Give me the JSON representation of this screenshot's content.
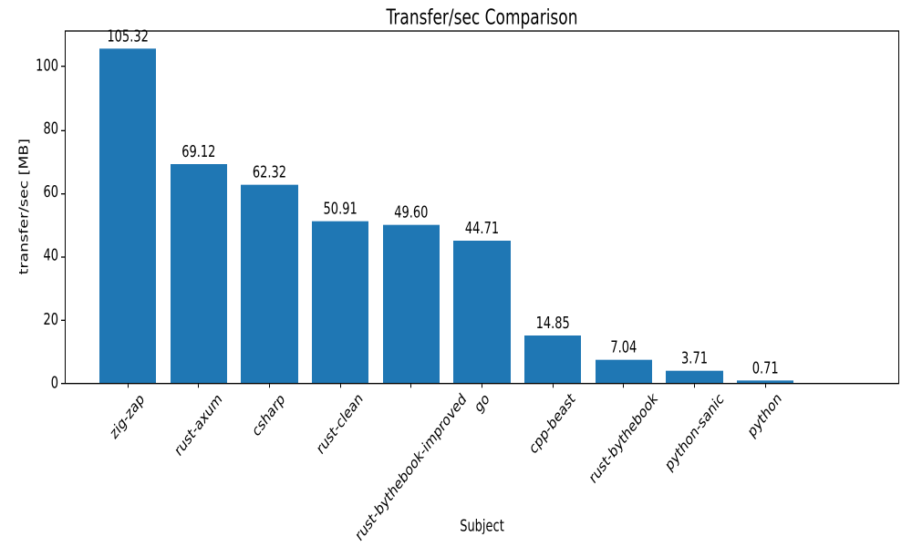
{
  "chart_data": {
    "type": "bar",
    "title": "Transfer/sec Comparison",
    "xlabel": "Subject",
    "ylabel": "transfer/sec [MB]",
    "categories": [
      "zig-zap",
      "rust-axum",
      "csharp",
      "rust-clean",
      "rust-bythebook-improved",
      "go",
      "cpp-beast",
      "rust-bythebook",
      "python-sanic",
      "python"
    ],
    "values": [
      105.32,
      69.12,
      62.32,
      50.91,
      49.6,
      44.71,
      14.85,
      7.04,
      3.71,
      0.71
    ],
    "value_labels": [
      "105.32",
      "69.12",
      "62.32",
      "50.91",
      "49.60",
      "44.71",
      "14.85",
      "7.04",
      "3.71",
      "0.71"
    ],
    "bar_color": "#1f77b4",
    "axis_color": "#000000",
    "text_color": "#000000",
    "yticks": [
      0,
      20,
      40,
      60,
      80,
      100
    ],
    "ylim": [
      0,
      111.6
    ],
    "bar_rel_width": 0.8,
    "x_margin_units": 0.89,
    "tick_rotation_deg": 45,
    "grid": false,
    "legend": null
  }
}
